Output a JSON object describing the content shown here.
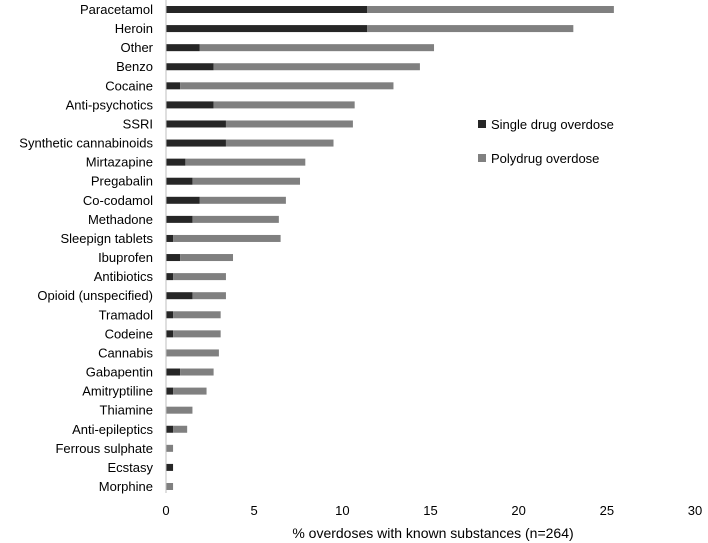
{
  "chart_data": {
    "type": "bar",
    "orientation": "horizontal",
    "stacked": true,
    "categories": [
      "Paracetamol",
      "Heroin",
      "Other",
      "Benzo",
      "Cocaine",
      "Anti-psychotics",
      "SSRI",
      "Synthetic cannabinoids",
      "Mirtazapine",
      "Pregabalin",
      "Co-codamol",
      "Methadone",
      "Sleepign tablets",
      "Ibuprofen",
      "Antibiotics",
      "Opioid (unspecified)",
      "Tramadol",
      "Codeine",
      "Cannabis",
      "Gabapentin",
      "Amitryptiline",
      "Thiamine",
      "Anti-epileptics",
      "Ferrous sulphate",
      "Ecstasy",
      "Morphine"
    ],
    "series": [
      {
        "name": "Single drug overdose",
        "color": "#262626",
        "values": [
          11.4,
          11.4,
          1.9,
          2.7,
          0.8,
          2.7,
          3.4,
          3.4,
          1.1,
          1.5,
          1.9,
          1.5,
          0.4,
          0.8,
          0.4,
          1.5,
          0.4,
          0.4,
          0.0,
          0.8,
          0.4,
          0.0,
          0.4,
          0.0,
          0.4,
          0.0
        ]
      },
      {
        "name": "Polydrug overdose",
        "color": "#808080",
        "values": [
          14.0,
          11.7,
          13.3,
          11.7,
          12.1,
          8.0,
          7.2,
          6.1,
          6.8,
          6.1,
          4.9,
          4.9,
          6.1,
          3.0,
          3.0,
          1.9,
          2.7,
          2.7,
          3.0,
          1.9,
          1.9,
          1.5,
          0.8,
          0.4,
          0.0,
          0.4
        ]
      }
    ],
    "xlabel": "% overdoses with known substances (n=264)",
    "xlim": [
      0,
      30
    ],
    "xticks": [
      0,
      5,
      10,
      15,
      20,
      25,
      30
    ],
    "grid": false,
    "legend_position": "right"
  }
}
